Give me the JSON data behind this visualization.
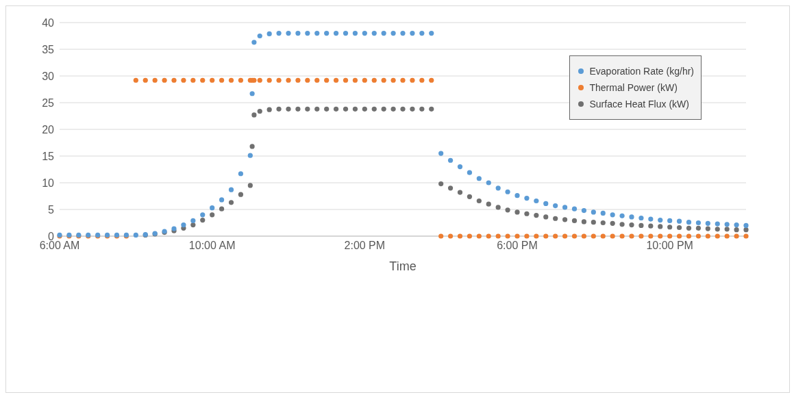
{
  "chart_data": {
    "type": "scatter",
    "xlabel": "Time",
    "x": [
      6,
      6.25,
      6.5,
      6.75,
      7,
      7.25,
      7.5,
      7.75,
      8,
      8.25,
      8.5,
      8.75,
      9,
      9.25,
      9.5,
      9.75,
      10,
      10.25,
      10.5,
      10.75,
      11,
      11.05,
      11.1,
      11.25,
      11.5,
      11.75,
      12,
      12.25,
      12.5,
      12.75,
      13,
      13.25,
      13.5,
      13.75,
      14,
      14.25,
      14.5,
      14.75,
      15,
      15.25,
      15.5,
      15.75,
      16,
      16.25,
      16.5,
      16.75,
      17,
      17.25,
      17.5,
      17.75,
      18,
      18.25,
      18.5,
      18.75,
      19,
      19.25,
      19.5,
      19.75,
      20,
      20.25,
      20.5,
      20.75,
      21,
      21.25,
      21.5,
      21.75,
      22,
      22.25,
      22.5,
      22.75,
      23,
      23.25,
      23.5,
      23.75,
      24
    ],
    "series": [
      {
        "name": "Evaporation Rate (kg/hr)",
        "color": "#5b9bd5",
        "values": [
          0.2,
          0.2,
          0.2,
          0.2,
          0.2,
          0.2,
          0.2,
          0.2,
          0.2,
          0.3,
          0.5,
          0.9,
          1.4,
          2.1,
          2.9,
          4.0,
          5.3,
          6.8,
          8.7,
          11.7,
          15.1,
          26.7,
          36.3,
          37.5,
          37.9,
          38,
          38,
          38,
          38,
          38,
          38,
          38,
          38,
          38,
          38,
          38,
          38,
          38,
          38,
          38,
          38,
          38,
          15.5,
          14.2,
          13.0,
          11.9,
          10.8,
          10.0,
          9.0,
          8.3,
          7.6,
          7.1,
          6.6,
          6.1,
          5.7,
          5.4,
          5.1,
          4.8,
          4.5,
          4.3,
          4.0,
          3.8,
          3.6,
          3.4,
          3.2,
          3.0,
          2.9,
          2.8,
          2.6,
          2.5,
          2.4,
          2.3,
          2.2,
          2.1,
          2.0
        ]
      },
      {
        "name": "Thermal Power (kW)",
        "color": "#ed7d31",
        "values": [
          0,
          0,
          0,
          0,
          0,
          0,
          0,
          0,
          29.2,
          29.2,
          29.2,
          29.2,
          29.2,
          29.2,
          29.2,
          29.2,
          29.2,
          29.2,
          29.2,
          29.2,
          29.2,
          29.2,
          29.2,
          29.2,
          29.2,
          29.2,
          29.2,
          29.2,
          29.2,
          29.2,
          29.2,
          29.2,
          29.2,
          29.2,
          29.2,
          29.2,
          29.2,
          29.2,
          29.2,
          29.2,
          29.2,
          29.2,
          0,
          0,
          0,
          0,
          0,
          0,
          0,
          0,
          0,
          0,
          0,
          0,
          0,
          0,
          0,
          0,
          0,
          0,
          0,
          0,
          0,
          0,
          0,
          0,
          0,
          0,
          0,
          0,
          0,
          0,
          0,
          0,
          0
        ]
      },
      {
        "name": "Surface Heat Flux (kW)",
        "color": "#707070",
        "values": [
          null,
          null,
          null,
          null,
          null,
          null,
          null,
          null,
          null,
          0.2,
          0.4,
          0.7,
          1.0,
          1.5,
          2.1,
          3.0,
          4.0,
          5.1,
          6.3,
          7.8,
          9.5,
          16.8,
          22.7,
          23.4,
          23.7,
          23.8,
          23.8,
          23.8,
          23.8,
          23.8,
          23.8,
          23.8,
          23.8,
          23.8,
          23.8,
          23.8,
          23.8,
          23.8,
          23.8,
          23.8,
          23.8,
          23.8,
          9.8,
          9.0,
          8.2,
          7.4,
          6.6,
          6.0,
          5.4,
          4.9,
          4.5,
          4.2,
          3.9,
          3.6,
          3.3,
          3.1,
          2.9,
          2.7,
          2.6,
          2.5,
          2.4,
          2.2,
          2.1,
          2.0,
          1.9,
          1.8,
          1.7,
          1.6,
          1.5,
          1.5,
          1.4,
          1.3,
          1.3,
          1.2,
          1.2
        ]
      }
    ],
    "xlim": [
      6,
      24
    ],
    "xticks": [
      {
        "value": 6,
        "label": "6:00 AM"
      },
      {
        "value": 10,
        "label": "10:00 AM"
      },
      {
        "value": 14,
        "label": "2:00 PM"
      },
      {
        "value": 18,
        "label": "6:00 PM"
      },
      {
        "value": 22,
        "label": "10:00 PM"
      }
    ],
    "ylim": [
      0,
      40
    ],
    "yticks": [
      0,
      5,
      10,
      15,
      20,
      25,
      30,
      35,
      40
    ],
    "grid": "y",
    "legend": "top right",
    "marker": "circle"
  }
}
